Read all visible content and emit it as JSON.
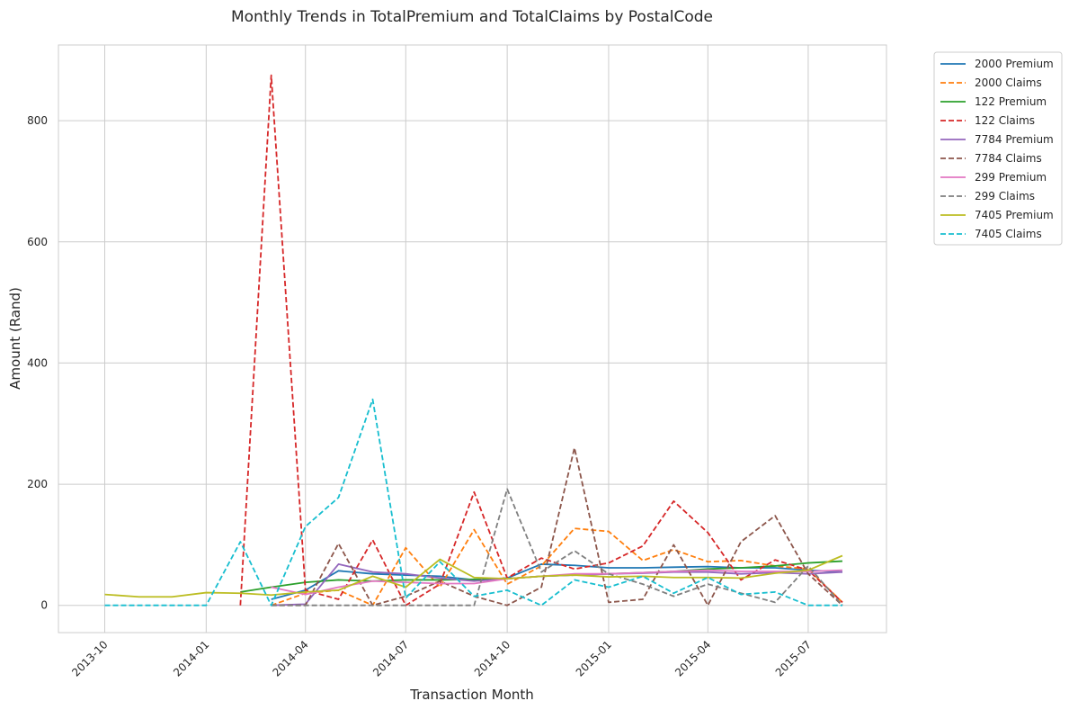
{
  "chart_data": {
    "type": "line",
    "title": "Monthly Trends in TotalPremium and TotalClaims by PostalCode",
    "xlabel": "Transaction Month",
    "ylabel": "Amount (Rand)",
    "ylim": [
      -45,
      925
    ],
    "yticks": [
      0,
      200,
      400,
      600,
      800
    ],
    "xlim": [
      "2013-08-20",
      "2015-09-10"
    ],
    "xticks": [
      "2013-10",
      "2014-01",
      "2014-04",
      "2014-07",
      "2014-10",
      "2015-01",
      "2015-04",
      "2015-07"
    ],
    "grid": true,
    "legend_position": "outside-top-right",
    "series": [
      {
        "name": "2000 Premium",
        "color": "#1f77b4",
        "dash": "solid",
        "x": [
          "2014-03",
          "2014-04",
          "2014-05",
          "2014-06",
          "2014-07",
          "2014-08",
          "2014-09",
          "2014-10",
          "2014-11",
          "2014-12",
          "2015-01",
          "2015-02",
          "2015-03",
          "2015-04",
          "2015-05",
          "2015-06",
          "2015-07",
          "2015-08"
        ],
        "y": [
          10,
          25,
          57,
          52,
          50,
          48,
          42,
          45,
          68,
          66,
          62,
          62,
          63,
          64,
          62,
          62,
          58,
          55
        ]
      },
      {
        "name": "2000 Claims",
        "color": "#ff7f0e",
        "dash": "dashed",
        "x": [
          "2014-03",
          "2014-04",
          "2014-05",
          "2014-06",
          "2014-07",
          "2014-08",
          "2014-09",
          "2014-10",
          "2014-11",
          "2014-12",
          "2015-01",
          "2015-02",
          "2015-03",
          "2015-04",
          "2015-05",
          "2015-06",
          "2015-07",
          "2015-08"
        ],
        "y": [
          0,
          20,
          25,
          0,
          95,
          30,
          125,
          35,
          65,
          127,
          122,
          74,
          92,
          72,
          74,
          65,
          60,
          5
        ]
      },
      {
        "name": "122 Premium",
        "color": "#2ca02c",
        "dash": "solid",
        "x": [
          "2014-02",
          "2014-03",
          "2014-04",
          "2014-05",
          "2014-06",
          "2014-07",
          "2014-08",
          "2014-09",
          "2014-10",
          "2014-11",
          "2014-12",
          "2015-01",
          "2015-02",
          "2015-03",
          "2015-04",
          "2015-05",
          "2015-06",
          "2015-07",
          "2015-08"
        ],
        "y": [
          22,
          30,
          38,
          42,
          40,
          42,
          42,
          43,
          44,
          48,
          50,
          52,
          54,
          56,
          60,
          62,
          65,
          70,
          73
        ]
      },
      {
        "name": "122 Claims",
        "color": "#d62728",
        "dash": "dashed",
        "x": [
          "2014-02",
          "2014-03",
          "2014-04",
          "2014-05",
          "2014-06",
          "2014-07",
          "2014-08",
          "2014-09",
          "2014-10",
          "2014-11",
          "2014-12",
          "2015-01",
          "2015-02",
          "2015-03",
          "2015-04",
          "2015-05",
          "2015-06",
          "2015-07",
          "2015-08"
        ],
        "y": [
          0,
          875,
          25,
          10,
          108,
          0,
          35,
          187,
          45,
          78,
          60,
          70,
          98,
          172,
          120,
          42,
          75,
          58,
          5
        ]
      },
      {
        "name": "7784 Premium",
        "color": "#9467bd",
        "dash": "solid",
        "x": [
          "2014-03",
          "2014-04",
          "2014-05",
          "2014-06",
          "2014-07",
          "2014-08",
          "2014-09",
          "2014-10",
          "2014-11",
          "2014-12",
          "2015-01",
          "2015-02",
          "2015-03",
          "2015-04",
          "2015-05",
          "2015-06",
          "2015-07",
          "2015-08"
        ],
        "y": [
          0,
          2,
          68,
          55,
          52,
          45,
          40,
          44,
          48,
          50,
          52,
          53,
          55,
          55,
          52,
          54,
          52,
          55
        ]
      },
      {
        "name": "7784 Claims",
        "color": "#8c564b",
        "dash": "dashed",
        "x": [
          "2014-03",
          "2014-04",
          "2014-05",
          "2014-06",
          "2014-07",
          "2014-08",
          "2014-09",
          "2014-10",
          "2014-11",
          "2014-12",
          "2015-01",
          "2015-02",
          "2015-03",
          "2015-04",
          "2015-05",
          "2015-06",
          "2015-07",
          "2015-08"
        ],
        "y": [
          0,
          0,
          102,
          0,
          15,
          40,
          15,
          0,
          30,
          260,
          5,
          10,
          100,
          0,
          105,
          148,
          52,
          0
        ]
      },
      {
        "name": "299 Premium",
        "color": "#e377c2",
        "dash": "solid",
        "x": [
          "2014-03",
          "2014-04",
          "2014-05",
          "2014-06",
          "2014-07",
          "2014-08",
          "2014-09",
          "2014-10",
          "2014-11",
          "2014-12",
          "2015-01",
          "2015-02",
          "2015-03",
          "2015-04",
          "2015-05",
          "2015-06",
          "2015-07",
          "2015-08"
        ],
        "y": [
          30,
          18,
          30,
          40,
          38,
          36,
          36,
          44,
          48,
          52,
          52,
          54,
          56,
          58,
          56,
          56,
          56,
          58
        ]
      },
      {
        "name": "299 Claims",
        "color": "#7f7f7f",
        "dash": "dashed",
        "x": [
          "2014-03",
          "2014-04",
          "2014-05",
          "2014-06",
          "2014-07",
          "2014-08",
          "2014-09",
          "2014-10",
          "2014-11",
          "2014-12",
          "2015-01",
          "2015-02",
          "2015-03",
          "2015-04",
          "2015-05",
          "2015-06",
          "2015-07",
          "2015-08"
        ],
        "y": [
          0,
          0,
          0,
          0,
          0,
          0,
          0,
          192,
          55,
          90,
          52,
          35,
          15,
          35,
          20,
          5,
          65,
          0
        ]
      },
      {
        "name": "7405 Premium",
        "color": "#bcbd22",
        "dash": "solid",
        "x": [
          "2013-10",
          "2013-11",
          "2013-12",
          "2014-01",
          "2014-02",
          "2014-03",
          "2014-04",
          "2014-05",
          "2014-06",
          "2014-07",
          "2014-08",
          "2014-09",
          "2014-10",
          "2014-11",
          "2014-12",
          "2015-01",
          "2015-02",
          "2015-03",
          "2015-04",
          "2015-05",
          "2015-06",
          "2015-07",
          "2015-08"
        ],
        "y": [
          18,
          14,
          14,
          21,
          20,
          17,
          22,
          25,
          48,
          30,
          76,
          46,
          44,
          48,
          50,
          47,
          48,
          46,
          46,
          45,
          53,
          58,
          82
        ]
      },
      {
        "name": "7405 Claims",
        "color": "#17becf",
        "dash": "dashed",
        "x": [
          "2013-10",
          "2013-11",
          "2013-12",
          "2014-01",
          "2014-02",
          "2014-03",
          "2014-04",
          "2014-05",
          "2014-06",
          "2014-07",
          "2014-08",
          "2014-09",
          "2014-10",
          "2014-11",
          "2014-12",
          "2015-01",
          "2015-02",
          "2015-03",
          "2015-04",
          "2015-05",
          "2015-06",
          "2015-07",
          "2015-08"
        ],
        "y": [
          0,
          0,
          0,
          0,
          105,
          0,
          130,
          178,
          340,
          12,
          72,
          15,
          25,
          0,
          42,
          30,
          48,
          20,
          46,
          18,
          22,
          0,
          0
        ]
      }
    ]
  }
}
